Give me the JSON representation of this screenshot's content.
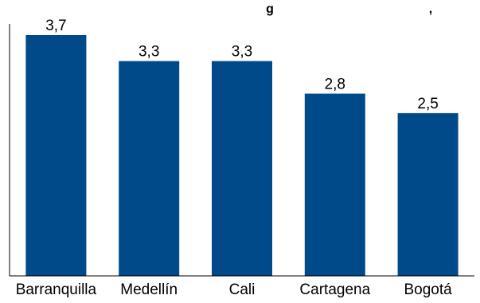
{
  "chart_data": {
    "type": "bar",
    "title": "",
    "title_fragment": "g",
    "title_fragment_2": ",",
    "categories": [
      "Barranquilla",
      "Medellín",
      "Cali",
      "Cartagena",
      "Bogotá"
    ],
    "values": [
      3.7,
      3.3,
      3.3,
      2.8,
      2.5
    ],
    "data_labels": [
      "3,7",
      "3,3",
      "3,3",
      "2,8",
      "2,5"
    ],
    "xlabel": "",
    "ylabel": "",
    "ylim": [
      0,
      3.7
    ],
    "grid": false,
    "legend": "none",
    "colors": {
      "bar": "#004a8a",
      "axis": "#000000",
      "text": "#000000"
    }
  }
}
